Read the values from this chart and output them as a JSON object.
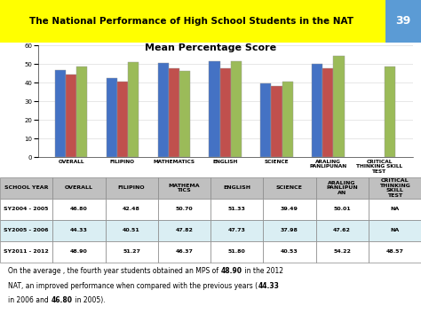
{
  "title_header": "The National Performance of High School Students in the NAT",
  "page_number": "39",
  "chart_title": "Mean Percentage Score",
  "categories": [
    "OVERALL",
    "FILIPINO",
    "MATHEMATICS",
    "ENGLISH",
    "SCIENCE",
    "ARALING\nPANLIPUNAN",
    "CRITICAL\nTHINKING SKILL\nTEST"
  ],
  "series": [
    {
      "label": "SY2004 - 2005",
      "color": "#4472C4",
      "values": [
        46.8,
        42.48,
        50.7,
        51.33,
        39.49,
        50.01,
        null
      ]
    },
    {
      "label": "SY2005 - 2006",
      "color": "#C0504D",
      "values": [
        44.33,
        40.51,
        47.82,
        47.73,
        37.98,
        47.62,
        null
      ]
    },
    {
      "label": "SY2011 - 2012",
      "color": "#9BBB59",
      "values": [
        48.9,
        51.27,
        46.37,
        51.8,
        40.53,
        54.22,
        48.57
      ]
    }
  ],
  "ylim": [
    0,
    60
  ],
  "yticks": [
    0,
    10,
    20,
    30,
    40,
    50,
    60
  ],
  "header_bg": "#FFFF00",
  "header_text_color": "#000000",
  "page_num_bg": "#5B9BD5",
  "chart_bg": "#FFFFFF",
  "table_header_bg": "#C0C0C0",
  "table_row1_bg": "#FFFFFF",
  "table_row2_bg": "#DAEEF3",
  "table_row3_bg": "#FFFFFF",
  "table_cols": [
    "SCHOOL YEAR",
    "OVERALL",
    "FILIPINO",
    "MATHEMA\nTICS",
    "ENGLISH",
    "SCIENCE",
    "ARALING\nPANLIPUN\nAN",
    "CRITICAL\nTHINKING\nSKILL\nTEST"
  ],
  "table_data": [
    [
      "SY2004 - 2005",
      "46.80",
      "42.48",
      "50.70",
      "51.33",
      "39.49",
      "50.01",
      "NA"
    ],
    [
      "SY2005 - 2006",
      "44.33",
      "40.51",
      "47.82",
      "47.73",
      "37.98",
      "47.62",
      "NA"
    ],
    [
      "SY2011 - 2012",
      "48.90",
      "51.27",
      "46.37",
      "51.80",
      "40.53",
      "54.22",
      "48.57"
    ]
  ],
  "footer_line1": "On the average , the fourth year students obtained an MPS of ",
  "footer_bold1": "48.90",
  "footer_line1b": " in the 2012",
  "footer_line2": "NAT, an improved performance when compared with the previous years (",
  "footer_bold2": "44.33",
  "footer_line2b": "",
  "footer_line3": "in 2006 and ",
  "footer_bold3": "46.80",
  "footer_line3b": " in 2005).",
  "bar_edge_color": "#999999",
  "grid_color": "#DDDDDD"
}
